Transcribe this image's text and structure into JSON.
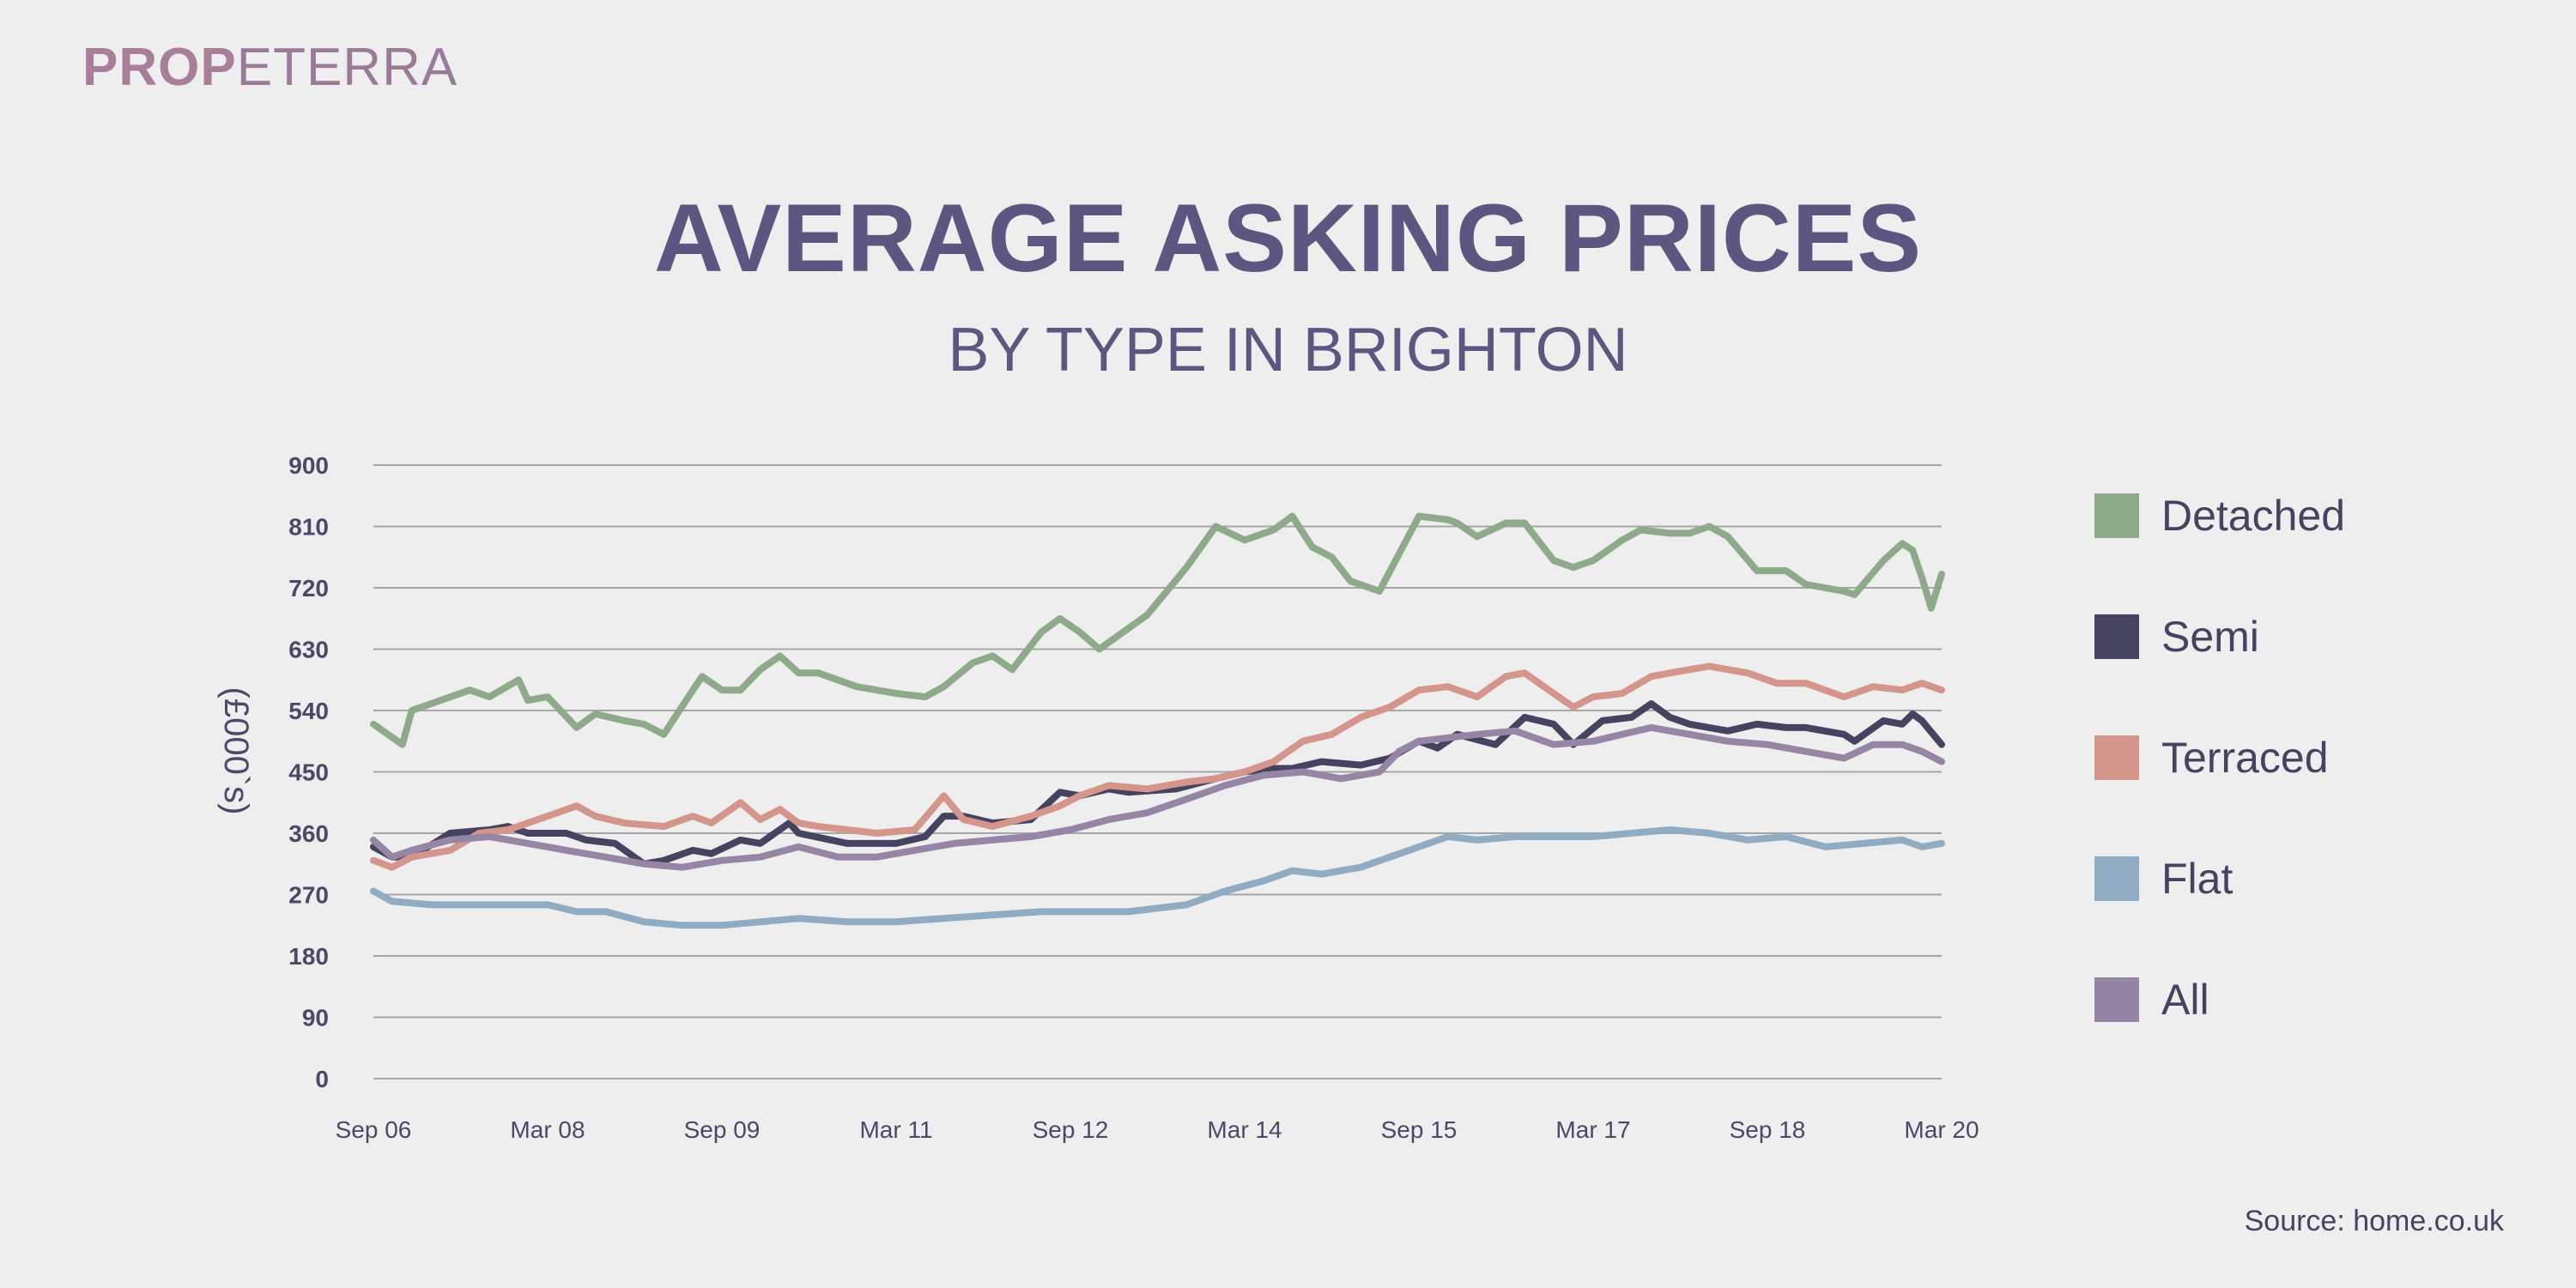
{
  "brand": {
    "part1": "PROP",
    "part2": "ETERRA"
  },
  "header": {
    "title": "AVERAGE ASKING PRICES",
    "subtitle": "BY TYPE IN BRIGHTON"
  },
  "source": "Source: home.co.uk",
  "chart_data": {
    "type": "line",
    "title": "AVERAGE ASKING PRICES",
    "subtitle": "BY TYPE IN BRIGHTON",
    "xlabel": "",
    "ylabel": "(£000`s)",
    "ylim": [
      0,
      900
    ],
    "yticks": [
      0,
      90,
      180,
      270,
      360,
      450,
      540,
      630,
      720,
      810,
      900
    ],
    "xlim": [
      2006.67,
      2020.17
    ],
    "xticks": [
      {
        "value": 2006.67,
        "label": "Sep 06"
      },
      {
        "value": 2008.17,
        "label": "Mar 08"
      },
      {
        "value": 2009.67,
        "label": "Sep 09"
      },
      {
        "value": 2011.17,
        "label": "Mar 11"
      },
      {
        "value": 2012.67,
        "label": "Sep 12"
      },
      {
        "value": 2014.17,
        "label": "Mar 14"
      },
      {
        "value": 2015.67,
        "label": "Sep 15"
      },
      {
        "value": 2017.17,
        "label": "Mar 17"
      },
      {
        "value": 2018.67,
        "label": "Sep 18"
      },
      {
        "value": 2020.17,
        "label": "Mar 20"
      }
    ],
    "grid": true,
    "legend": "right",
    "series": [
      {
        "name": "Detached",
        "color": "#8faa8b",
        "points": [
          [
            2006.67,
            520
          ],
          [
            2006.92,
            490
          ],
          [
            2007.0,
            540
          ],
          [
            2007.5,
            570
          ],
          [
            2007.67,
            560
          ],
          [
            2007.92,
            585
          ],
          [
            2008.0,
            555
          ],
          [
            2008.17,
            560
          ],
          [
            2008.42,
            515
          ],
          [
            2008.58,
            535
          ],
          [
            2008.83,
            525
          ],
          [
            2009.0,
            520
          ],
          [
            2009.17,
            505
          ],
          [
            2009.42,
            570
          ],
          [
            2009.5,
            590
          ],
          [
            2009.67,
            570
          ],
          [
            2009.83,
            570
          ],
          [
            2010.0,
            600
          ],
          [
            2010.17,
            620
          ],
          [
            2010.33,
            595
          ],
          [
            2010.5,
            595
          ],
          [
            2010.83,
            575
          ],
          [
            2011.17,
            565
          ],
          [
            2011.42,
            560
          ],
          [
            2011.58,
            575
          ],
          [
            2011.83,
            610
          ],
          [
            2012.0,
            620
          ],
          [
            2012.17,
            600
          ],
          [
            2012.42,
            655
          ],
          [
            2012.58,
            675
          ],
          [
            2012.75,
            655
          ],
          [
            2012.92,
            630
          ],
          [
            2013.0,
            640
          ],
          [
            2013.33,
            680
          ],
          [
            2013.67,
            750
          ],
          [
            2013.92,
            810
          ],
          [
            2014.17,
            790
          ],
          [
            2014.42,
            805
          ],
          [
            2014.58,
            825
          ],
          [
            2014.75,
            780
          ],
          [
            2014.92,
            765
          ],
          [
            2015.08,
            730
          ],
          [
            2015.33,
            715
          ],
          [
            2015.5,
            770
          ],
          [
            2015.67,
            825
          ],
          [
            2015.92,
            820
          ],
          [
            2016.0,
            815
          ],
          [
            2016.17,
            795
          ],
          [
            2016.42,
            815
          ],
          [
            2016.58,
            815
          ],
          [
            2016.83,
            760
          ],
          [
            2017.0,
            750
          ],
          [
            2017.17,
            760
          ],
          [
            2017.42,
            790
          ],
          [
            2017.58,
            805
          ],
          [
            2017.83,
            800
          ],
          [
            2018.0,
            800
          ],
          [
            2018.17,
            810
          ],
          [
            2018.33,
            795
          ],
          [
            2018.58,
            745
          ],
          [
            2018.83,
            745
          ],
          [
            2019.0,
            725
          ],
          [
            2019.33,
            715
          ],
          [
            2019.42,
            710
          ],
          [
            2019.67,
            760
          ],
          [
            2019.83,
            785
          ],
          [
            2019.92,
            775
          ],
          [
            2020.0,
            735
          ],
          [
            2020.08,
            690
          ],
          [
            2020.17,
            740
          ]
        ]
      },
      {
        "name": "Semi",
        "color": "#45435f",
        "points": [
          [
            2006.67,
            340
          ],
          [
            2006.83,
            325
          ],
          [
            2007.0,
            325
          ],
          [
            2007.33,
            360
          ],
          [
            2007.67,
            365
          ],
          [
            2007.83,
            370
          ],
          [
            2008.0,
            360
          ],
          [
            2008.33,
            360
          ],
          [
            2008.5,
            350
          ],
          [
            2008.75,
            345
          ],
          [
            2009.0,
            315
          ],
          [
            2009.17,
            320
          ],
          [
            2009.42,
            335
          ],
          [
            2009.58,
            330
          ],
          [
            2009.83,
            350
          ],
          [
            2010.0,
            345
          ],
          [
            2010.25,
            375
          ],
          [
            2010.33,
            360
          ],
          [
            2010.75,
            345
          ],
          [
            2011.17,
            345
          ],
          [
            2011.42,
            355
          ],
          [
            2011.58,
            385
          ],
          [
            2011.75,
            385
          ],
          [
            2012.0,
            375
          ],
          [
            2012.33,
            380
          ],
          [
            2012.58,
            420
          ],
          [
            2012.75,
            415
          ],
          [
            2013.0,
            425
          ],
          [
            2013.17,
            420
          ],
          [
            2013.58,
            425
          ],
          [
            2013.92,
            440
          ],
          [
            2014.17,
            450
          ],
          [
            2014.42,
            455
          ],
          [
            2014.58,
            455
          ],
          [
            2014.83,
            465
          ],
          [
            2015.17,
            460
          ],
          [
            2015.42,
            470
          ],
          [
            2015.67,
            495
          ],
          [
            2015.83,
            485
          ],
          [
            2016.0,
            505
          ],
          [
            2016.33,
            490
          ],
          [
            2016.58,
            530
          ],
          [
            2016.83,
            520
          ],
          [
            2017.0,
            490
          ],
          [
            2017.25,
            525
          ],
          [
            2017.5,
            530
          ],
          [
            2017.67,
            550
          ],
          [
            2017.83,
            530
          ],
          [
            2018.0,
            520
          ],
          [
            2018.33,
            510
          ],
          [
            2018.58,
            520
          ],
          [
            2018.83,
            515
          ],
          [
            2019.0,
            515
          ],
          [
            2019.33,
            505
          ],
          [
            2019.42,
            495
          ],
          [
            2019.67,
            525
          ],
          [
            2019.83,
            520
          ],
          [
            2019.92,
            535
          ],
          [
            2020.0,
            525
          ],
          [
            2020.17,
            490
          ]
        ]
      },
      {
        "name": "Terraced",
        "color": "#d4958b",
        "points": [
          [
            2006.67,
            320
          ],
          [
            2006.83,
            310
          ],
          [
            2007.0,
            325
          ],
          [
            2007.33,
            335
          ],
          [
            2007.58,
            360
          ],
          [
            2007.83,
            365
          ],
          [
            2008.17,
            385
          ],
          [
            2008.42,
            400
          ],
          [
            2008.58,
            385
          ],
          [
            2008.83,
            375
          ],
          [
            2009.17,
            370
          ],
          [
            2009.42,
            385
          ],
          [
            2009.58,
            375
          ],
          [
            2009.83,
            405
          ],
          [
            2010.0,
            380
          ],
          [
            2010.17,
            395
          ],
          [
            2010.33,
            375
          ],
          [
            2010.5,
            370
          ],
          [
            2010.75,
            365
          ],
          [
            2011.0,
            360
          ],
          [
            2011.33,
            365
          ],
          [
            2011.58,
            415
          ],
          [
            2011.75,
            380
          ],
          [
            2012.0,
            370
          ],
          [
            2012.33,
            385
          ],
          [
            2012.58,
            400
          ],
          [
            2012.75,
            415
          ],
          [
            2013.0,
            430
          ],
          [
            2013.33,
            425
          ],
          [
            2013.67,
            435
          ],
          [
            2013.92,
            440
          ],
          [
            2014.17,
            450
          ],
          [
            2014.42,
            465
          ],
          [
            2014.67,
            495
          ],
          [
            2014.92,
            505
          ],
          [
            2015.17,
            530
          ],
          [
            2015.42,
            545
          ],
          [
            2015.67,
            570
          ],
          [
            2015.92,
            575
          ],
          [
            2016.17,
            560
          ],
          [
            2016.42,
            590
          ],
          [
            2016.58,
            595
          ],
          [
            2016.83,
            565
          ],
          [
            2017.0,
            545
          ],
          [
            2017.17,
            560
          ],
          [
            2017.42,
            565
          ],
          [
            2017.67,
            590
          ],
          [
            2017.83,
            595
          ],
          [
            2018.17,
            605
          ],
          [
            2018.5,
            595
          ],
          [
            2018.75,
            580
          ],
          [
            2019.0,
            580
          ],
          [
            2019.33,
            560
          ],
          [
            2019.58,
            575
          ],
          [
            2019.83,
            570
          ],
          [
            2020.0,
            580
          ],
          [
            2020.17,
            570
          ]
        ]
      },
      {
        "name": "Flat",
        "color": "#8facc2",
        "points": [
          [
            2006.67,
            275
          ],
          [
            2006.83,
            260
          ],
          [
            2007.17,
            255
          ],
          [
            2007.67,
            255
          ],
          [
            2008.17,
            255
          ],
          [
            2008.42,
            245
          ],
          [
            2008.67,
            245
          ],
          [
            2009.0,
            230
          ],
          [
            2009.33,
            225
          ],
          [
            2009.67,
            225
          ],
          [
            2010.0,
            230
          ],
          [
            2010.33,
            235
          ],
          [
            2010.75,
            230
          ],
          [
            2011.17,
            230
          ],
          [
            2011.58,
            235
          ],
          [
            2012.0,
            240
          ],
          [
            2012.42,
            245
          ],
          [
            2012.83,
            245
          ],
          [
            2013.17,
            245
          ],
          [
            2013.67,
            255
          ],
          [
            2014.0,
            275
          ],
          [
            2014.33,
            290
          ],
          [
            2014.58,
            305
          ],
          [
            2014.83,
            300
          ],
          [
            2015.17,
            310
          ],
          [
            2015.42,
            325
          ],
          [
            2015.67,
            340
          ],
          [
            2015.92,
            355
          ],
          [
            2016.17,
            350
          ],
          [
            2016.5,
            355
          ],
          [
            2016.83,
            355
          ],
          [
            2017.17,
            355
          ],
          [
            2017.5,
            360
          ],
          [
            2017.83,
            365
          ],
          [
            2018.17,
            360
          ],
          [
            2018.5,
            350
          ],
          [
            2018.83,
            355
          ],
          [
            2019.17,
            340
          ],
          [
            2019.5,
            345
          ],
          [
            2019.83,
            350
          ],
          [
            2020.0,
            340
          ],
          [
            2020.17,
            345
          ]
        ]
      },
      {
        "name": "All",
        "color": "#9686a6",
        "points": [
          [
            2006.67,
            350
          ],
          [
            2006.83,
            325
          ],
          [
            2007.0,
            335
          ],
          [
            2007.33,
            350
          ],
          [
            2007.67,
            355
          ],
          [
            2008.0,
            345
          ],
          [
            2008.33,
            335
          ],
          [
            2008.67,
            325
          ],
          [
            2009.0,
            315
          ],
          [
            2009.33,
            310
          ],
          [
            2009.67,
            320
          ],
          [
            2010.0,
            325
          ],
          [
            2010.33,
            340
          ],
          [
            2010.67,
            325
          ],
          [
            2011.0,
            325
          ],
          [
            2011.33,
            335
          ],
          [
            2011.67,
            345
          ],
          [
            2012.0,
            350
          ],
          [
            2012.33,
            355
          ],
          [
            2012.67,
            365
          ],
          [
            2013.0,
            380
          ],
          [
            2013.33,
            390
          ],
          [
            2013.67,
            410
          ],
          [
            2014.0,
            430
          ],
          [
            2014.33,
            445
          ],
          [
            2014.67,
            450
          ],
          [
            2015.0,
            440
          ],
          [
            2015.33,
            450
          ],
          [
            2015.5,
            480
          ],
          [
            2015.67,
            495
          ],
          [
            2015.92,
            500
          ],
          [
            2016.17,
            505
          ],
          [
            2016.5,
            510
          ],
          [
            2016.83,
            490
          ],
          [
            2017.17,
            495
          ],
          [
            2017.42,
            505
          ],
          [
            2017.67,
            515
          ],
          [
            2018.0,
            505
          ],
          [
            2018.33,
            495
          ],
          [
            2018.67,
            490
          ],
          [
            2019.0,
            480
          ],
          [
            2019.33,
            470
          ],
          [
            2019.58,
            490
          ],
          [
            2019.83,
            490
          ],
          [
            2020.0,
            480
          ],
          [
            2020.17,
            465
          ]
        ]
      }
    ]
  }
}
